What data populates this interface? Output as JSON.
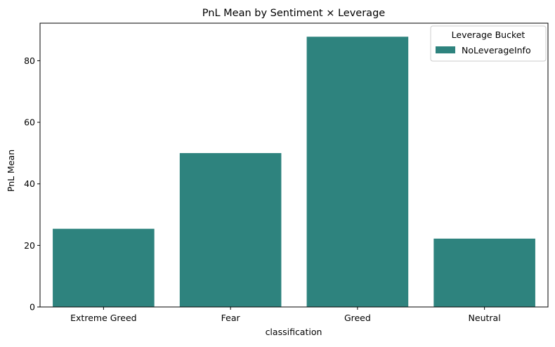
{
  "chart_data": {
    "type": "bar",
    "title": "PnL Mean by Sentiment × Leverage",
    "xlabel": "classification",
    "ylabel": "PnL Mean",
    "categories": [
      "Extreme Greed",
      "Fear",
      "Greed",
      "Neutral"
    ],
    "series": [
      {
        "name": "NoLeverageInfo",
        "values": [
          25.4,
          50.0,
          87.8,
          22.2
        ]
      }
    ],
    "ylim": [
      0,
      92.2
    ],
    "yticks": [
      0,
      20,
      40,
      60,
      80
    ],
    "grid": false,
    "legend": {
      "title": "Leverage Bucket",
      "placement": "top-right"
    },
    "colors": {
      "bar": "#2e837e",
      "axis": "#000000",
      "legend_border": "#cccccc"
    }
  }
}
